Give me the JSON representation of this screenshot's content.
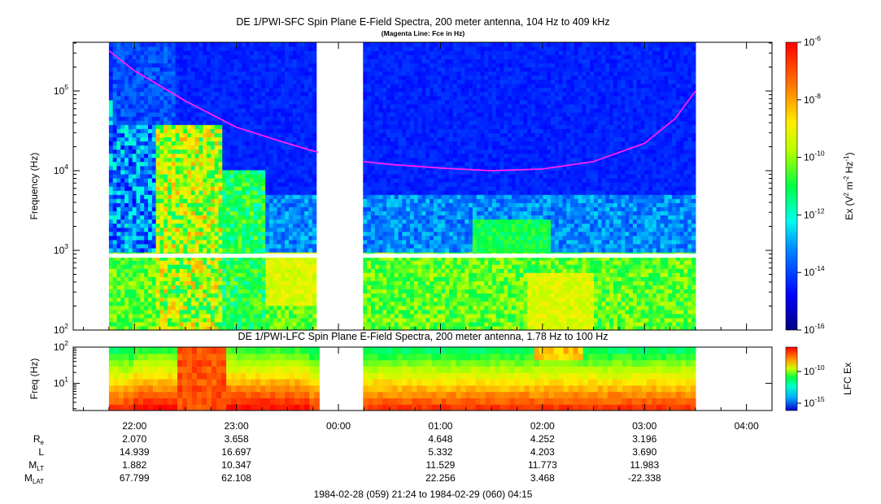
{
  "chart_data": [
    {
      "type": "heatmap",
      "title": "DE 1/PWI-SFC  Spin Plane E-Field Spectra, 200 meter antenna, 104 Hz to 409 kHz",
      "subtitle": "(Magenta Line: Fce in Hz)",
      "ylabel": "Frequency (Hz)",
      "y_scale": "log",
      "ylim": [
        100,
        409000
      ],
      "y_ticks": [
        {
          "value": 100,
          "base": "10",
          "exp": "2"
        },
        {
          "value": 1000,
          "base": "10",
          "exp": "3"
        },
        {
          "value": 10000,
          "base": "10",
          "exp": "4"
        },
        {
          "value": 100000,
          "base": "10",
          "exp": "5"
        }
      ],
      "colorbar": {
        "label": "Ex (V2 m-2 Hz-1)",
        "label_parts": {
          "pre": "Ex (V",
          "sup1": "2",
          "mid": " m",
          "sup2": "-2",
          "mid2": " Hz",
          "sup3": "-1",
          "post": ")"
        },
        "scale": "log",
        "range": [
          1e-16,
          1e-06
        ],
        "ticks": [
          {
            "value": 1e-06,
            "base": "10",
            "exp": "-6"
          },
          {
            "value": 1e-08,
            "base": "10",
            "exp": "-8"
          },
          {
            "value": 1e-10,
            "base": "10",
            "exp": "-10"
          },
          {
            "value": 1e-12,
            "base": "10",
            "exp": "-12"
          },
          {
            "value": 1e-14,
            "base": "10",
            "exp": "-14"
          },
          {
            "value": 1e-16,
            "base": "10",
            "exp": "-16"
          }
        ]
      },
      "data_coverage_hours": [
        [
          21.75,
          23.8
        ],
        [
          24.25,
          27.5
        ]
      ],
      "fce_line": {
        "color": "#ff20ff",
        "segments": [
          [
            [
              21.75,
              320000
            ],
            [
              22.0,
              180000
            ],
            [
              22.5,
              75000
            ],
            [
              23.0,
              35000
            ],
            [
              23.5,
              22000
            ],
            [
              23.8,
              17000
            ]
          ],
          [
            [
              24.25,
              13000
            ],
            [
              24.5,
              12000
            ],
            [
              25.0,
              10800
            ],
            [
              25.5,
              10000
            ],
            [
              26.0,
              10500
            ],
            [
              26.5,
              13000
            ],
            [
              27.0,
              22000
            ],
            [
              27.3,
              45000
            ],
            [
              27.5,
              100000
            ]
          ]
        ]
      }
    },
    {
      "type": "heatmap",
      "title": "DE 1/PWI-LFC  Spin Plane E-Field Spectra, 200 meter antenna, 1.78 Hz to 100 Hz",
      "ylabel": "Freq (Hz)",
      "y_scale": "log",
      "ylim": [
        1.78,
        100
      ],
      "y_ticks": [
        {
          "value": 10,
          "base": "10",
          "exp": "1"
        },
        {
          "value": 100,
          "base": "10",
          "exp": "2"
        }
      ],
      "colorbar": {
        "label": "LFC Ex",
        "scale": "log",
        "ticks": [
          {
            "value": 1e-10,
            "base": "10",
            "exp": "-10"
          },
          {
            "value": 1e-15,
            "base": "10",
            "exp": "-15"
          }
        ]
      },
      "data_coverage_hours": [
        [
          21.75,
          23.8
        ],
        [
          24.25,
          27.5
        ]
      ]
    }
  ],
  "time_axis": {
    "range_hours": [
      21.4,
      28.25
    ],
    "ticks": [
      {
        "hour": 22,
        "label": "22:00"
      },
      {
        "hour": 23,
        "label": "23:00"
      },
      {
        "hour": 24,
        "label": "00:00"
      },
      {
        "hour": 25,
        "label": "01:00"
      },
      {
        "hour": 26,
        "label": "02:00"
      },
      {
        "hour": 27,
        "label": "03:00"
      },
      {
        "hour": 28,
        "label": "04:00"
      }
    ]
  },
  "ephemeris": {
    "rows": [
      {
        "name": "Re",
        "main": "R",
        "sub": "e",
        "values": [
          "2.070",
          "3.658",
          "",
          "4.648",
          "4.252",
          "3.196",
          ""
        ]
      },
      {
        "name": "L",
        "main": "L",
        "sub": "",
        "values": [
          "14.939",
          "16.697",
          "",
          "5.332",
          "4.203",
          "3.690",
          ""
        ]
      },
      {
        "name": "MLT",
        "main": "M",
        "sub": "LT",
        "values": [
          "1.882",
          "10.347",
          "",
          "11.529",
          "11.773",
          "11.983",
          ""
        ]
      },
      {
        "name": "MLAT",
        "main": "M",
        "sub": "LAT",
        "values": [
          "67.799",
          "62.108",
          "",
          "22.256",
          "3.468",
          "-22.338",
          ""
        ]
      }
    ]
  },
  "footer": "1984-02-28 (059) 21:24 to 1984-02-29 (060) 04:15"
}
